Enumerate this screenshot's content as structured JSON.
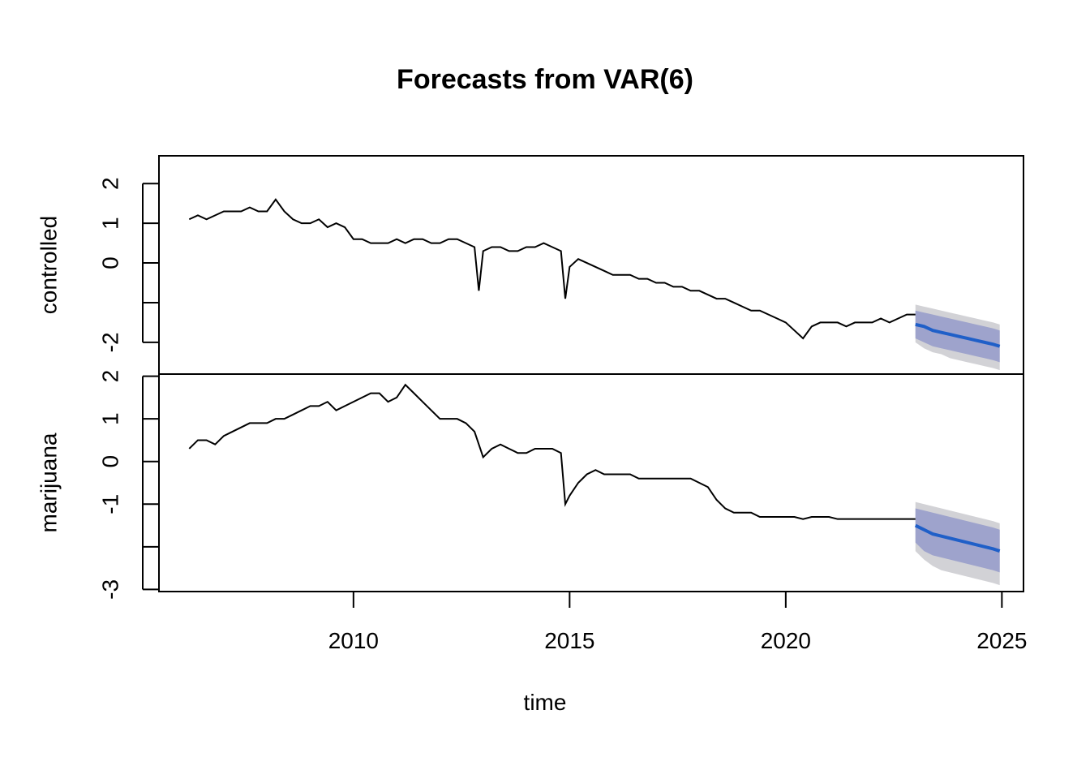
{
  "chart_data": {
    "type": "line",
    "title": "Forecasts from VAR(6)",
    "xlabel": "time",
    "xlim": [
      2005.5,
      2025.5
    ],
    "x_ticks": [
      {
        "value": 2010,
        "label": "2010"
      },
      {
        "value": 2015,
        "label": "2015"
      },
      {
        "value": 2020,
        "label": "2020"
      },
      {
        "value": 2025,
        "label": "2025"
      }
    ],
    "grid": false,
    "colors": {
      "history": "#000000",
      "forecast": "#1f5fc8",
      "band80": "#9ea3cc",
      "band95": "#d2d2d6"
    },
    "panels": [
      {
        "ylabel": "controlled",
        "ylim": [
          -2.8,
          2.7
        ],
        "y_ticks": [
          {
            "value": 2,
            "label": "2"
          },
          {
            "value": 1,
            "label": "1"
          },
          {
            "value": 0,
            "label": "0"
          },
          {
            "value": -1,
            "label": ""
          },
          {
            "value": -2,
            "label": "-2"
          }
        ],
        "history": {
          "x": [
            2006.2,
            2006.4,
            2006.6,
            2006.8,
            2007.0,
            2007.2,
            2007.4,
            2007.6,
            2007.8,
            2008.0,
            2008.2,
            2008.4,
            2008.6,
            2008.8,
            2009.0,
            2009.2,
            2009.4,
            2009.6,
            2009.8,
            2010.0,
            2010.2,
            2010.4,
            2010.6,
            2010.8,
            2011.0,
            2011.2,
            2011.4,
            2011.6,
            2011.8,
            2012.0,
            2012.2,
            2012.4,
            2012.6,
            2012.8,
            2012.9,
            2013.0,
            2013.2,
            2013.4,
            2013.6,
            2013.8,
            2014.0,
            2014.2,
            2014.4,
            2014.6,
            2014.8,
            2014.9,
            2015.0,
            2015.2,
            2015.4,
            2015.6,
            2015.8,
            2016.0,
            2016.2,
            2016.4,
            2016.6,
            2016.8,
            2017.0,
            2017.2,
            2017.4,
            2017.6,
            2017.8,
            2018.0,
            2018.2,
            2018.4,
            2018.6,
            2018.8,
            2019.0,
            2019.2,
            2019.4,
            2019.6,
            2019.8,
            2020.0,
            2020.2,
            2020.4,
            2020.6,
            2020.8,
            2021.0,
            2021.2,
            2021.4,
            2021.6,
            2021.8,
            2022.0,
            2022.2,
            2022.4,
            2022.6,
            2022.8,
            2023.0
          ],
          "y": [
            1.1,
            1.2,
            1.1,
            1.2,
            1.3,
            1.3,
            1.3,
            1.4,
            1.3,
            1.3,
            1.6,
            1.3,
            1.1,
            1.0,
            1.0,
            1.1,
            0.9,
            1.0,
            0.9,
            0.6,
            0.6,
            0.5,
            0.5,
            0.5,
            0.6,
            0.5,
            0.6,
            0.6,
            0.5,
            0.5,
            0.6,
            0.6,
            0.5,
            0.4,
            -0.7,
            0.3,
            0.4,
            0.4,
            0.3,
            0.3,
            0.4,
            0.4,
            0.5,
            0.4,
            0.3,
            -0.9,
            -0.1,
            0.1,
            0.0,
            -0.1,
            -0.2,
            -0.3,
            -0.3,
            -0.3,
            -0.4,
            -0.4,
            -0.5,
            -0.5,
            -0.6,
            -0.6,
            -0.7,
            -0.7,
            -0.8,
            -0.9,
            -0.9,
            -1.0,
            -1.1,
            -1.2,
            -1.2,
            -1.3,
            -1.4,
            -1.5,
            -1.7,
            -1.9,
            -1.6,
            -1.5,
            -1.5,
            -1.5,
            -1.6,
            -1.5,
            -1.5,
            -1.5,
            -1.4,
            -1.5,
            -1.4,
            -1.3,
            -1.3
          ]
        },
        "forecast": {
          "x": [
            2023.0,
            2023.2,
            2023.4,
            2023.6,
            2023.8,
            2024.0,
            2024.2,
            2024.4,
            2024.6,
            2024.8,
            2024.95
          ],
          "mean": [
            -1.55,
            -1.6,
            -1.7,
            -1.75,
            -1.8,
            -1.85,
            -1.9,
            -1.95,
            -2.0,
            -2.05,
            -2.1
          ],
          "lo80": [
            -1.9,
            -2.0,
            -2.1,
            -2.15,
            -2.2,
            -2.25,
            -2.3,
            -2.35,
            -2.4,
            -2.45,
            -2.5
          ],
          "hi80": [
            -1.2,
            -1.25,
            -1.3,
            -1.35,
            -1.4,
            -1.45,
            -1.5,
            -1.55,
            -1.6,
            -1.65,
            -1.7
          ],
          "lo95": [
            -2.0,
            -2.15,
            -2.25,
            -2.3,
            -2.4,
            -2.45,
            -2.5,
            -2.55,
            -2.6,
            -2.65,
            -2.7
          ],
          "hi95": [
            -1.05,
            -1.1,
            -1.15,
            -1.2,
            -1.25,
            -1.3,
            -1.35,
            -1.4,
            -1.45,
            -1.5,
            -1.55
          ]
        }
      },
      {
        "ylabel": "marijuana",
        "ylim": [
          -3.05,
          2.05
        ],
        "y_ticks": [
          {
            "value": 2,
            "label": "2"
          },
          {
            "value": 1,
            "label": "1"
          },
          {
            "value": 0,
            "label": "0"
          },
          {
            "value": -1,
            "label": "-1"
          },
          {
            "value": -2,
            "label": ""
          },
          {
            "value": -3,
            "label": "-3"
          }
        ],
        "history": {
          "x": [
            2006.2,
            2006.4,
            2006.6,
            2006.8,
            2007.0,
            2007.2,
            2007.4,
            2007.6,
            2007.8,
            2008.0,
            2008.2,
            2008.4,
            2008.6,
            2008.8,
            2009.0,
            2009.2,
            2009.4,
            2009.6,
            2009.8,
            2010.0,
            2010.2,
            2010.4,
            2010.6,
            2010.8,
            2011.0,
            2011.2,
            2011.4,
            2011.6,
            2011.8,
            2012.0,
            2012.2,
            2012.4,
            2012.6,
            2012.8,
            2013.0,
            2013.2,
            2013.4,
            2013.6,
            2013.8,
            2014.0,
            2014.2,
            2014.4,
            2014.6,
            2014.8,
            2014.9,
            2015.0,
            2015.2,
            2015.4,
            2015.6,
            2015.8,
            2016.0,
            2016.2,
            2016.4,
            2016.6,
            2016.8,
            2017.0,
            2017.2,
            2017.4,
            2017.6,
            2017.8,
            2018.0,
            2018.2,
            2018.4,
            2018.6,
            2018.8,
            2019.0,
            2019.2,
            2019.4,
            2019.6,
            2019.8,
            2020.0,
            2020.2,
            2020.4,
            2020.6,
            2020.8,
            2021.0,
            2021.2,
            2021.4,
            2021.6,
            2021.8,
            2022.0,
            2022.2,
            2022.4,
            2022.6,
            2022.8,
            2023.0
          ],
          "y": [
            0.3,
            0.5,
            0.5,
            0.4,
            0.6,
            0.7,
            0.8,
            0.9,
            0.9,
            0.9,
            1.0,
            1.0,
            1.1,
            1.2,
            1.3,
            1.3,
            1.4,
            1.2,
            1.3,
            1.4,
            1.5,
            1.6,
            1.6,
            1.4,
            1.5,
            1.8,
            1.6,
            1.4,
            1.2,
            1.0,
            1.0,
            1.0,
            0.9,
            0.7,
            0.1,
            0.3,
            0.4,
            0.3,
            0.2,
            0.2,
            0.3,
            0.3,
            0.3,
            0.2,
            -1.0,
            -0.8,
            -0.5,
            -0.3,
            -0.2,
            -0.3,
            -0.3,
            -0.3,
            -0.3,
            -0.4,
            -0.4,
            -0.4,
            -0.4,
            -0.4,
            -0.4,
            -0.4,
            -0.5,
            -0.6,
            -0.9,
            -1.1,
            -1.2,
            -1.2,
            -1.2,
            -1.3,
            -1.3,
            -1.3,
            -1.3,
            -1.3,
            -1.35,
            -1.3,
            -1.3,
            -1.3,
            -1.35,
            -1.35,
            -1.35,
            -1.35,
            -1.35,
            -1.35,
            -1.35,
            -1.35,
            -1.35,
            -1.35
          ]
        },
        "forecast": {
          "x": [
            2023.0,
            2023.2,
            2023.4,
            2023.6,
            2023.8,
            2024.0,
            2024.2,
            2024.4,
            2024.6,
            2024.8,
            2024.95
          ],
          "mean": [
            -1.5,
            -1.6,
            -1.7,
            -1.75,
            -1.8,
            -1.85,
            -1.9,
            -1.95,
            -2.0,
            -2.05,
            -2.1
          ],
          "lo80": [
            -1.9,
            -2.1,
            -2.2,
            -2.25,
            -2.3,
            -2.35,
            -2.4,
            -2.45,
            -2.5,
            -2.55,
            -2.6
          ],
          "hi80": [
            -1.1,
            -1.15,
            -1.2,
            -1.25,
            -1.3,
            -1.35,
            -1.4,
            -1.45,
            -1.5,
            -1.55,
            -1.6
          ],
          "lo95": [
            -2.1,
            -2.3,
            -2.45,
            -2.55,
            -2.6,
            -2.65,
            -2.7,
            -2.75,
            -2.8,
            -2.85,
            -2.9
          ],
          "hi95": [
            -0.95,
            -1.0,
            -1.05,
            -1.1,
            -1.15,
            -1.2,
            -1.25,
            -1.3,
            -1.35,
            -1.4,
            -1.45
          ]
        }
      }
    ]
  }
}
